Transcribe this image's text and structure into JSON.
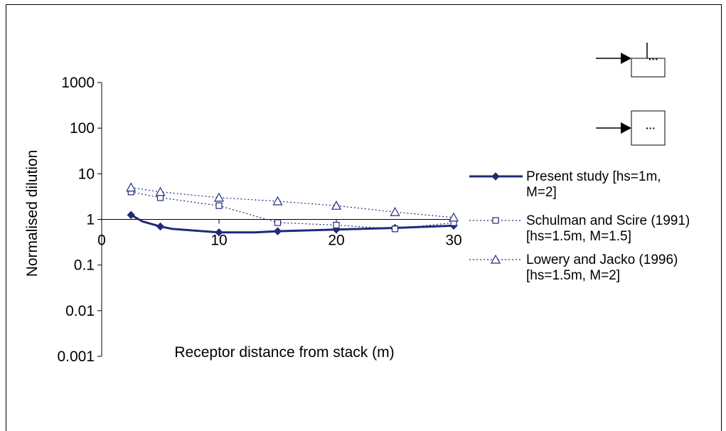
{
  "chart_data": {
    "type": "line",
    "xlabel": "Receptor distance from stack (m)",
    "ylabel": "Normalised dilution",
    "xlim": [
      0,
      30
    ],
    "ylim": [
      0.001,
      1000
    ],
    "yscale": "log",
    "x_ticks": [
      "0",
      "10",
      "20",
      "30"
    ],
    "y_ticks": [
      "1000",
      "100",
      "10",
      "1",
      "0.1",
      "0.01",
      "0.001"
    ],
    "legend_position": "right",
    "series": [
      {
        "name_lines": [
          "Present study [hs=1m,",
          "M=2]"
        ],
        "marker": "diamond",
        "line": "solid",
        "color": "#1f2a7a",
        "x": [
          2.5,
          3.5,
          5,
          6,
          10,
          13,
          15,
          20,
          25,
          30
        ],
        "y": [
          1.25,
          0.9,
          0.7,
          0.62,
          0.52,
          0.52,
          0.55,
          0.6,
          0.65,
          0.73
        ]
      },
      {
        "name_lines": [
          "Schulman and Scire (1991)",
          "[hs=1.5m, M=1.5]"
        ],
        "marker": "square",
        "line": "dotted",
        "color": "#1f2a7a",
        "x": [
          2.5,
          5,
          10,
          15,
          20,
          25,
          30
        ],
        "y": [
          4.0,
          3.0,
          2.0,
          0.85,
          0.75,
          0.62,
          0.85
        ]
      },
      {
        "name_lines": [
          "Lowery and Jacko (1996)",
          "[hs=1.5m, M=2]"
        ],
        "marker": "triangle",
        "line": "dotted",
        "color": "#1f2a7a",
        "x": [
          2.5,
          5,
          10,
          15,
          20,
          25,
          30
        ],
        "y": [
          5.0,
          4.0,
          3.0,
          2.5,
          2.0,
          1.45,
          1.1
        ]
      }
    ]
  }
}
